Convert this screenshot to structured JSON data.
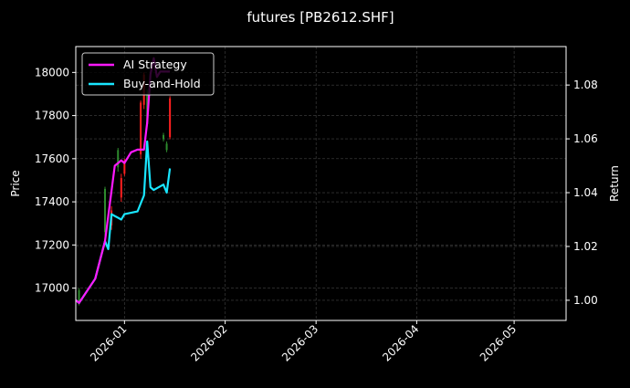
{
  "chart_data": {
    "type": "line",
    "title": "futures [PB2612.SHF]",
    "xlabel": "",
    "ylabel_left": "Price",
    "ylabel_right": "Return",
    "x_ticks": [
      "2026-01",
      "2026-02",
      "2026-03",
      "2026-04",
      "2026-05"
    ],
    "x_tick_dates": [
      "2026-01-01",
      "2026-02-01",
      "2026-03-01",
      "2026-04-01",
      "2026-05-01"
    ],
    "xlim": [
      "2025-12-17",
      "2026-05-17"
    ],
    "y_left_ticks": [
      17000,
      17200,
      17400,
      17600,
      17800,
      18000
    ],
    "y_left_lim": [
      16850,
      18120
    ],
    "y_right_ticks": [
      "1.00",
      "1.02",
      "1.04",
      "1.06",
      "1.08"
    ],
    "y_right_tick_values": [
      1.0,
      1.02,
      1.04,
      1.06,
      1.08
    ],
    "y_right_lim": [
      0.9925,
      1.0943
    ],
    "grid": true,
    "legend_position": "top-left",
    "colors": {
      "background": "#000000",
      "up_candle": "#2e8b2e",
      "down_candle": "#ff2020",
      "grid": "#444444",
      "text": "#ffffff"
    },
    "series": [
      {
        "name": "AI Strategy",
        "color": "#ff19ff",
        "points": [
          [
            "2025-12-17",
            1.0
          ],
          [
            "2025-12-18",
            0.999
          ],
          [
            "2025-12-23",
            1.008
          ],
          [
            "2025-12-26",
            1.022
          ],
          [
            "2025-12-29",
            1.05
          ],
          [
            "2025-12-31",
            1.052
          ],
          [
            "2026-01-01",
            1.051
          ],
          [
            "2026-01-03",
            1.055
          ],
          [
            "2026-01-05",
            1.056
          ],
          [
            "2026-01-07",
            1.056
          ],
          [
            "2026-01-08",
            1.066
          ],
          [
            "2026-01-09",
            1.084
          ],
          [
            "2026-01-10",
            1.09
          ],
          [
            "2026-01-11",
            1.083
          ],
          [
            "2026-01-12",
            1.085
          ],
          [
            "2026-01-14",
            1.085
          ],
          [
            "2026-01-15",
            1.085
          ]
        ]
      },
      {
        "name": "Buy-and-Hold",
        "color": "#19e6ff",
        "points": [
          [
            "2025-12-17",
            1.0
          ],
          [
            "2025-12-18",
            0.999
          ],
          [
            "2025-12-23",
            1.008
          ],
          [
            "2025-12-26",
            1.022
          ],
          [
            "2025-12-27",
            1.019
          ],
          [
            "2025-12-28",
            1.032
          ],
          [
            "2025-12-31",
            1.03
          ],
          [
            "2026-01-01",
            1.032
          ],
          [
            "2026-01-05",
            1.033
          ],
          [
            "2026-01-07",
            1.039
          ],
          [
            "2026-01-08",
            1.059
          ],
          [
            "2026-01-09",
            1.042
          ],
          [
            "2026-01-10",
            1.041
          ],
          [
            "2026-01-13",
            1.043
          ],
          [
            "2026-01-14",
            1.04
          ],
          [
            "2026-01-15",
            1.049
          ]
        ]
      }
    ],
    "candles": [
      {
        "date": "2025-12-18",
        "open": 16930,
        "close": 16990,
        "high": 17000,
        "low": 16920
      },
      {
        "date": "2025-12-26",
        "open": 17260,
        "close": 17460,
        "high": 17470,
        "low": 17240
      },
      {
        "date": "2025-12-28",
        "open": 17360,
        "close": 17290,
        "high": 17380,
        "low": 17270
      },
      {
        "date": "2025-12-30",
        "open": 17560,
        "close": 17640,
        "high": 17650,
        "low": 17540
      },
      {
        "date": "2025-12-31",
        "open": 17510,
        "close": 17420,
        "high": 17530,
        "low": 17400
      },
      {
        "date": "2026-01-01",
        "open": 17590,
        "close": 17530,
        "high": 17600,
        "low": 17520
      },
      {
        "date": "2026-01-06",
        "open": 17860,
        "close": 17620,
        "high": 17870,
        "low": 17600
      },
      {
        "date": "2026-01-07",
        "open": 17990,
        "close": 17850,
        "high": 18000,
        "low": 17830
      },
      {
        "date": "2026-01-08",
        "open": 17760,
        "close": 17900,
        "high": 17920,
        "low": 17750
      },
      {
        "date": "2026-01-13",
        "open": 17690,
        "close": 17710,
        "high": 17720,
        "low": 17680
      },
      {
        "date": "2026-01-14",
        "open": 17640,
        "close": 17670,
        "high": 17680,
        "low": 17630
      },
      {
        "date": "2026-01-15",
        "open": 17880,
        "close": 17700,
        "high": 17890,
        "low": 17690
      }
    ]
  }
}
